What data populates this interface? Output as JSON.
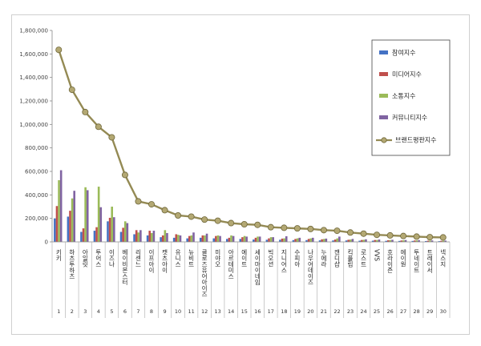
{
  "chart_data": {
    "type": "bar",
    "title": "",
    "xlabel": "",
    "ylabel": "",
    "ylim": [
      0,
      1800000
    ],
    "yticks": [
      0,
      200000,
      400000,
      600000,
      800000,
      1000000,
      1200000,
      1400000,
      1600000,
      1800000
    ],
    "ytick_labels": [
      "0",
      "200,000",
      "400,000",
      "600,000",
      "800,000",
      "1,000,000",
      "1,200,000",
      "1,400,000",
      "1,600,000",
      "1,800,000"
    ],
    "grid": false,
    "legend_position": "top-right",
    "indices": [
      "1",
      "2",
      "3",
      "4",
      "5",
      "6",
      "7",
      "8",
      "9",
      "10",
      "11",
      "12",
      "13",
      "14",
      "15",
      "16",
      "17",
      "18",
      "19",
      "20",
      "21",
      "22",
      "23",
      "24",
      "25",
      "26",
      "27",
      "28",
      "29",
      "30"
    ],
    "categories": [
      "키키",
      "하츠투하츠",
      "아일릿",
      "투어스",
      "이즈나",
      "베이비몬스터",
      "리센느",
      "이프아이",
      "캣츠아이",
      "유니스",
      "뉴비트",
      "클로즈유어아이즈",
      "미야오",
      "아르테미스",
      "에이트",
      "세이마이네임",
      "빅오션",
      "지니어스",
      "수피아",
      "나우어데이즈",
      "누에라",
      "캔디샵",
      "킥플립",
      "로스트",
      "VVS",
      "호라이즌",
      "에이원",
      "투네이트",
      "트레이서",
      "넥스지"
    ],
    "series": [
      {
        "name": "참여지수",
        "color": "#4472c4",
        "values": [
          200000,
          215000,
          85000,
          95000,
          175000,
          85000,
          65000,
          55000,
          40000,
          35000,
          30000,
          35000,
          30000,
          25000,
          25000,
          20000,
          18000,
          18000,
          15000,
          15000,
          13000,
          12000,
          12000,
          10000,
          10000,
          9000,
          8000,
          8000,
          7000,
          6000
        ]
      },
      {
        "name": "미디어지수",
        "color": "#c0504d",
        "values": [
          305000,
          265000,
          115000,
          125000,
          205000,
          120000,
          100000,
          95000,
          55000,
          65000,
          50000,
          55000,
          50000,
          35000,
          40000,
          35000,
          30000,
          28000,
          25000,
          25000,
          22000,
          20000,
          18000,
          16000,
          16000,
          14000,
          12000,
          12000,
          10000,
          9000
        ]
      },
      {
        "name": "소통지수",
        "color": "#9bbb59",
        "values": [
          525000,
          370000,
          465000,
          470000,
          300000,
          175000,
          80000,
          75000,
          100000,
          60000,
          55000,
          55000,
          55000,
          55000,
          50000,
          45000,
          40000,
          30000,
          30000,
          30000,
          25000,
          30000,
          20000,
          18000,
          16000,
          16000,
          14000,
          13000,
          11000,
          10000
        ]
      },
      {
        "name": "커뮤니티지수",
        "color": "#8064a2",
        "values": [
          610000,
          435000,
          440000,
          295000,
          210000,
          160000,
          100000,
          95000,
          75000,
          55000,
          80000,
          70000,
          50000,
          50000,
          45000,
          45000,
          40000,
          48000,
          35000,
          35000,
          28000,
          45000,
          25000,
          22000,
          20000,
          18000,
          16000,
          15000,
          12000,
          11000
        ]
      }
    ],
    "line": {
      "name": "브랜드평판지수",
      "color": "#948a54",
      "values": [
        1635000,
        1295000,
        1105000,
        980000,
        890000,
        570000,
        345000,
        320000,
        270000,
        225000,
        215000,
        190000,
        180000,
        160000,
        150000,
        145000,
        125000,
        120000,
        115000,
        110000,
        100000,
        95000,
        80000,
        70000,
        60000,
        55000,
        50000,
        45000,
        40000,
        38000
      ]
    }
  }
}
